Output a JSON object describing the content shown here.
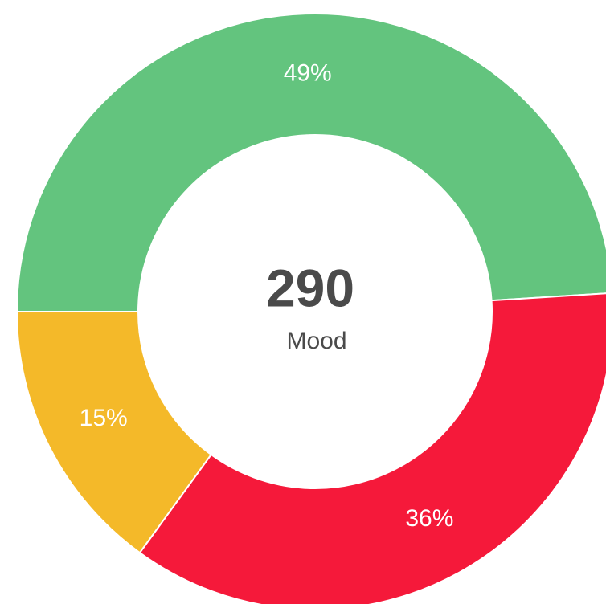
{
  "chart_data": {
    "type": "donut",
    "values": [
      49,
      36,
      15
    ],
    "value_labels": [
      "49%",
      "36%",
      "15%"
    ],
    "colors": [
      "#63c47e",
      "#f5193a",
      "#f4b929"
    ],
    "total": "290",
    "center_label": "Mood"
  }
}
